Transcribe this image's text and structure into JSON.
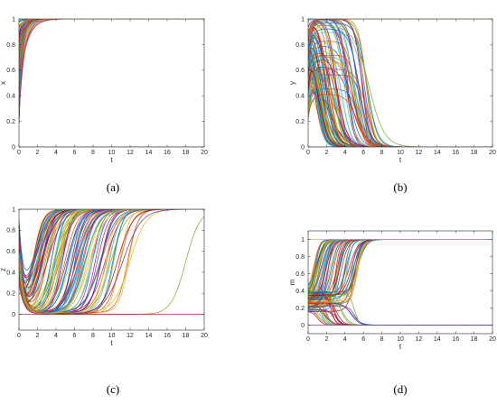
{
  "figure": {
    "captions": [
      "(a)",
      "(b)",
      "(c)",
      "(d)"
    ]
  },
  "chart_data": [
    {
      "type": "line",
      "panel": "a",
      "xlabel": "t",
      "ylabel": "x",
      "xlim": [
        0,
        20
      ],
      "ylim": [
        0,
        1
      ],
      "xticks": [
        0,
        2,
        4,
        6,
        8,
        10,
        12,
        14,
        16,
        18,
        20
      ],
      "yticks": [
        0,
        0.2,
        0.4,
        0.6,
        0.8,
        1
      ],
      "grid": false,
      "legend": "none",
      "series_count": 100,
      "series_shape": "logistic",
      "series": [
        {
          "name": "",
          "x0": 0.2,
          "final": 1,
          "rise_time": 0.4
        },
        {
          "name": "",
          "x0": 0.45,
          "final": 1,
          "rise_time": 1.6
        },
        {
          "name": "",
          "x0": 0.7,
          "final": 1,
          "rise_time": 3.0
        },
        {
          "name": "",
          "x0": 0.0,
          "final": 0,
          "rise_time": 0
        },
        {
          "name": "",
          "x0": 1.0,
          "final": 1,
          "rise_time": 0
        }
      ]
    },
    {
      "type": "line",
      "panel": "b",
      "xlabel": "t",
      "ylabel": "y",
      "xlim": [
        0,
        20
      ],
      "ylim": [
        0,
        1
      ],
      "xticks": [
        0,
        2,
        4,
        6,
        8,
        10,
        12,
        14,
        16,
        18,
        20
      ],
      "yticks": [
        0,
        0.2,
        0.4,
        0.6,
        0.8,
        1
      ],
      "grid": false,
      "legend": "none",
      "series_count": 100,
      "series_shape": "rise-then-decay",
      "series": [
        {
          "name": "",
          "y0": 0.3,
          "peak": 0.95,
          "decay_midpoint": 2.0,
          "final": 0
        },
        {
          "name": "",
          "y0": 0.6,
          "peak": 0.9,
          "decay_midpoint": 3.5,
          "final": 0
        },
        {
          "name": "",
          "y0": 0.8,
          "peak": 1.0,
          "decay_midpoint": 6.5,
          "final": 0
        },
        {
          "name": "",
          "y0": 1.0,
          "peak": 1.0,
          "decay_midpoint": null,
          "final": 1
        }
      ]
    },
    {
      "type": "line",
      "panel": "c",
      "xlabel": "t",
      "ylabel": "z",
      "xlim": [
        0,
        20
      ],
      "ylim": [
        -0.15,
        1
      ],
      "xticks": [
        0,
        2,
        4,
        6,
        8,
        10,
        12,
        14,
        16,
        18,
        20
      ],
      "yticks": [
        0,
        0.2,
        0.4,
        0.6,
        0.8,
        1
      ],
      "grid": false,
      "legend": "none",
      "series_count": 100,
      "series_shape": "dip-then-rise",
      "series": [
        {
          "name": "",
          "z0": 0.8,
          "dip": 0.1,
          "rise_midpoint": 3.0,
          "final": 1
        },
        {
          "name": "",
          "z0": 0.5,
          "dip": 0.0,
          "rise_midpoint": 7.5,
          "final": 1
        },
        {
          "name": "",
          "z0": 0.7,
          "dip": 0.0,
          "rise_midpoint": 11.0,
          "final": 1
        },
        {
          "name": "",
          "z0": 0.6,
          "dip": 0.0,
          "rise_midpoint": 18.0,
          "final": 1
        },
        {
          "name": "",
          "z0": 0.3,
          "dip": 0.0,
          "rise_midpoint": null,
          "final": 0
        }
      ]
    },
    {
      "type": "line",
      "panel": "d",
      "xlabel": "t",
      "ylabel": "m",
      "xlim": [
        0,
        20
      ],
      "ylim": [
        -0.1,
        1.1
      ],
      "xticks": [
        0,
        2,
        4,
        6,
        8,
        10,
        12,
        14,
        16,
        18,
        20
      ],
      "yticks": [
        0,
        0.2,
        0.4,
        0.6,
        0.8,
        1
      ],
      "grid": false,
      "legend": "none",
      "series_count": 100,
      "series_shape": "bifurcating",
      "series": [
        {
          "name": "",
          "m0": 0.2,
          "final": 1,
          "midpoint": 1.0
        },
        {
          "name": "",
          "m0": 0.3,
          "final": 1,
          "midpoint": 4.0
        },
        {
          "name": "",
          "m0": 0.25,
          "final": 0,
          "midpoint": 2.5
        },
        {
          "name": "",
          "m0": 1.0,
          "final": 1,
          "midpoint": null
        },
        {
          "name": "",
          "m0": 0.0,
          "final": 0,
          "midpoint": null
        }
      ]
    }
  ],
  "palette": [
    "#0072bd",
    "#d95319",
    "#edb120",
    "#7e2f8e",
    "#77ac30",
    "#4dbeee",
    "#a2142f"
  ]
}
